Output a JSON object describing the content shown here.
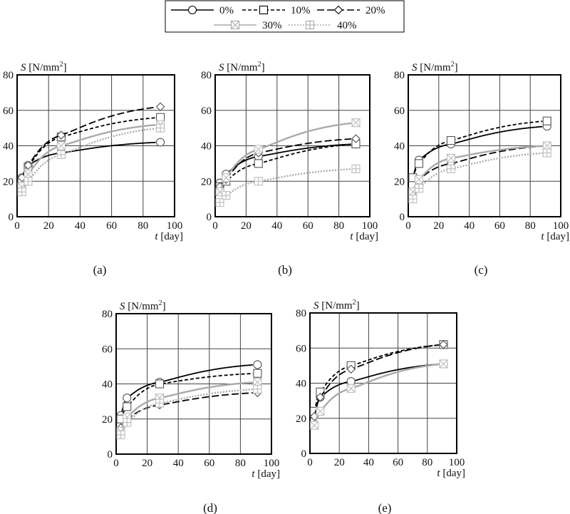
{
  "chart_data": {
    "type": "line",
    "legend": {
      "placement": "top-center",
      "entries": [
        {
          "name": "0%",
          "marker": "circle",
          "color": "#000000",
          "dash": "solid"
        },
        {
          "name": "10%",
          "marker": "square",
          "color": "#000000",
          "dash": "short-dash"
        },
        {
          "name": "20%",
          "marker": "diamond",
          "color": "#000000",
          "dash": "long-dash"
        },
        {
          "name": "30%",
          "marker": "square-x",
          "color": "#aaaaaa",
          "dash": "solid"
        },
        {
          "name": "40%",
          "marker": "square-plus",
          "color": "#aaaaaa",
          "dash": "dotted"
        }
      ]
    },
    "x": [
      3,
      7,
      28,
      91
    ],
    "xlabel_var": "t",
    "xlabel_unit": "[day]",
    "ylabel_var": "S",
    "ylabel_unit": "[N/mm",
    "ylabel_sup": "2",
    "ylabel_close": "]",
    "xlim": [
      0,
      100
    ],
    "ylim": [
      0,
      80
    ],
    "xticks": [
      "0",
      "20",
      "40",
      "60",
      "80",
      "100"
    ],
    "yticks": [
      "0",
      "20",
      "40",
      "60",
      "80"
    ],
    "grid": true,
    "panels": [
      {
        "label": "(a)",
        "series": [
          [
            22,
            29,
            36,
            42
          ],
          [
            20,
            28,
            45,
            56
          ],
          [
            22,
            29,
            46,
            62
          ],
          [
            17,
            24,
            40,
            52
          ],
          [
            14,
            20,
            35,
            50
          ]
        ]
      },
      {
        "label": "(b)",
        "series": [
          [
            19,
            24,
            34,
            41
          ],
          [
            17,
            20,
            30,
            41
          ],
          [
            17,
            21,
            36,
            44
          ],
          [
            14,
            22,
            38,
            53
          ],
          [
            8,
            12,
            20,
            27
          ]
        ]
      },
      {
        "label": "(c)",
        "series": [
          [
            22,
            32,
            41,
            51
          ],
          [
            22,
            30,
            43,
            54
          ],
          [
            14,
            21,
            30,
            40
          ],
          [
            14,
            21,
            33,
            40
          ],
          [
            10,
            16,
            27,
            36
          ]
        ]
      },
      {
        "label": "(d)",
        "series": [
          [
            22,
            32,
            41,
            51
          ],
          [
            20,
            27,
            40,
            46
          ],
          [
            15,
            20,
            28,
            35
          ],
          [
            13,
            21,
            32,
            41
          ],
          [
            11,
            18,
            29,
            37
          ]
        ]
      },
      {
        "label": "(e)",
        "series": [
          [
            22,
            32,
            41,
            51
          ],
          [
            24,
            35,
            50,
            62
          ],
          [
            21,
            32,
            48,
            62
          ],
          [
            16,
            24,
            37,
            51
          ],
          null
        ]
      }
    ]
  }
}
